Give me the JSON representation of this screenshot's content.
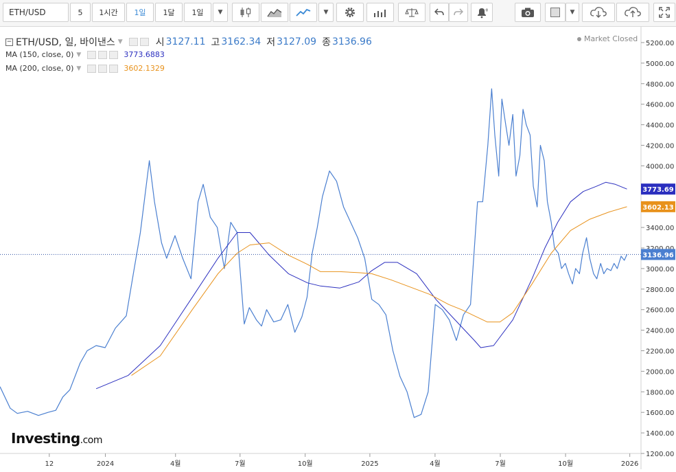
{
  "toolbar": {
    "symbol": "ETH/USD",
    "intervals": [
      "5",
      "1시간",
      "1일",
      "1달",
      "1일"
    ],
    "active_interval_index": 2
  },
  "legend": {
    "title": "ETH/USD, 일, 바이낸스",
    "open_label": "시",
    "open": "3127.11",
    "high_label": "고",
    "high": "3162.34",
    "low_label": "저",
    "low": "3127.09",
    "close_label": "종",
    "close": "3136.96",
    "status": "Market Closed",
    "ma150_label": "MA (150, close, 0)",
    "ma150_value": "3773.6883",
    "ma200_label": "MA (200, close, 0)",
    "ma200_value": "3602.1329"
  },
  "logo": {
    "brand": "Investing",
    "suffix": ".com"
  },
  "chart_data": {
    "type": "line",
    "title": "ETH/USD, 일, 바이낸스",
    "ylim": [
      1200,
      5300
    ],
    "y_ticks": [
      1200,
      1400,
      1600,
      1800,
      2000,
      2200,
      2400,
      2600,
      2800,
      3000,
      3200,
      3400,
      3600,
      3800,
      4000,
      4200,
      4400,
      4600,
      4800,
      5000,
      5200
    ],
    "x_ticks": [
      {
        "label": "12",
        "pos": 0.0769
      },
      {
        "label": "2024",
        "pos": 0.1644
      },
      {
        "label": "4월",
        "pos": 0.2738
      },
      {
        "label": "7월",
        "pos": 0.3745
      },
      {
        "label": "10월",
        "pos": 0.4761
      },
      {
        "label": "2025",
        "pos": 0.577
      },
      {
        "label": "4월",
        "pos": 0.6787
      },
      {
        "label": "7월",
        "pos": 0.7805
      },
      {
        "label": "10월",
        "pos": 0.8823
      },
      {
        "label": "2026",
        "pos": 0.9825
      }
    ],
    "last_price": 3136.96,
    "series": [
      {
        "name": "ETH/USD",
        "color": "#4a7fd0",
        "x": [
          0,
          0.016,
          0.027,
          0.043,
          0.06,
          0.075,
          0.087,
          0.098,
          0.109,
          0.125,
          0.136,
          0.15,
          0.164,
          0.18,
          0.197,
          0.208,
          0.219,
          0.233,
          0.241,
          0.252,
          0.26,
          0.273,
          0.285,
          0.298,
          0.309,
          0.317,
          0.328,
          0.339,
          0.35,
          0.36,
          0.37,
          0.381,
          0.389,
          0.4,
          0.408,
          0.416,
          0.427,
          0.438,
          0.449,
          0.46,
          0.471,
          0.479,
          0.487,
          0.495,
          0.503,
          0.514,
          0.525,
          0.536,
          0.547,
          0.558,
          0.569,
          0.58,
          0.591,
          0.602,
          0.613,
          0.624,
          0.635,
          0.646,
          0.657,
          0.668,
          0.679,
          0.69,
          0.701,
          0.712,
          0.723,
          0.734,
          0.745,
          0.753,
          0.761,
          0.767,
          0.772,
          0.778,
          0.783,
          0.789,
          0.794,
          0.8,
          0.805,
          0.811,
          0.816,
          0.821,
          0.827,
          0.832,
          0.838,
          0.843,
          0.849,
          0.854,
          0.86,
          0.865,
          0.871,
          0.876,
          0.882,
          0.887,
          0.893,
          0.898,
          0.904,
          0.909,
          0.915,
          0.92,
          0.926,
          0.931,
          0.937,
          0.942,
          0.947,
          0.953,
          0.958,
          0.963,
          0.969,
          0.974,
          0.978
        ],
        "y": [
          1850,
          1640,
          1590,
          1610,
          1570,
          1600,
          1620,
          1750,
          1820,
          2080,
          2200,
          2250,
          2230,
          2420,
          2540,
          2950,
          3350,
          4050,
          3650,
          3250,
          3100,
          3320,
          3100,
          2900,
          3650,
          3820,
          3500,
          3400,
          3000,
          3450,
          3350,
          2460,
          2620,
          2500,
          2440,
          2600,
          2480,
          2500,
          2650,
          2380,
          2530,
          2720,
          3150,
          3400,
          3700,
          3950,
          3850,
          3600,
          3450,
          3300,
          3100,
          2700,
          2650,
          2550,
          2200,
          1950,
          1800,
          1550,
          1580,
          1800,
          2650,
          2600,
          2500,
          2300,
          2550,
          2650,
          3650,
          3650,
          4200,
          4750,
          4300,
          3900,
          4650,
          4400,
          4200,
          4500,
          3900,
          4100,
          4550,
          4400,
          4300,
          3800,
          3600,
          4200,
          4050,
          3650,
          3450,
          3200,
          3150,
          3000,
          3050,
          2950,
          2850,
          3000,
          2950,
          3150,
          3300,
          3100,
          2950,
          2900,
          3050,
          2950,
          3000,
          2980,
          3050,
          3000,
          3120,
          3080,
          3136.96
        ]
      },
      {
        "name": "MA (150, close, 0)",
        "color": "#2b2fbf",
        "x": [
          0.15,
          0.2,
          0.25,
          0.3,
          0.34,
          0.37,
          0.39,
          0.42,
          0.45,
          0.48,
          0.5,
          0.53,
          0.56,
          0.58,
          0.6,
          0.62,
          0.65,
          0.68,
          0.71,
          0.74,
          0.75,
          0.77,
          0.8,
          0.83,
          0.85,
          0.87,
          0.89,
          0.91,
          0.93,
          0.945,
          0.96,
          0.978
        ],
        "y": [
          1830,
          1960,
          2250,
          2720,
          3100,
          3350,
          3350,
          3130,
          2950,
          2860,
          2830,
          2810,
          2870,
          2980,
          3060,
          3060,
          2950,
          2700,
          2500,
          2300,
          2230,
          2250,
          2500,
          2900,
          3200,
          3450,
          3650,
          3750,
          3800,
          3840,
          3820,
          3773.69
        ]
      },
      {
        "name": "MA (200, close, 0)",
        "color": "#e8921c",
        "x": [
          0.205,
          0.25,
          0.3,
          0.34,
          0.37,
          0.39,
          0.42,
          0.45,
          0.48,
          0.5,
          0.53,
          0.56,
          0.58,
          0.61,
          0.64,
          0.67,
          0.7,
          0.72,
          0.74,
          0.76,
          0.78,
          0.8,
          0.83,
          0.86,
          0.89,
          0.92,
          0.95,
          0.978
        ],
        "y": [
          1960,
          2150,
          2600,
          2950,
          3150,
          3230,
          3250,
          3130,
          3040,
          2970,
          2970,
          2960,
          2950,
          2890,
          2820,
          2750,
          2650,
          2600,
          2540,
          2480,
          2480,
          2570,
          2850,
          3150,
          3370,
          3480,
          3550,
          3602.13
        ]
      }
    ]
  },
  "axis_labels": {
    "ma150_tag": "3773.69",
    "ma200_tag": "3602.13",
    "price_tag": "3136.96"
  }
}
